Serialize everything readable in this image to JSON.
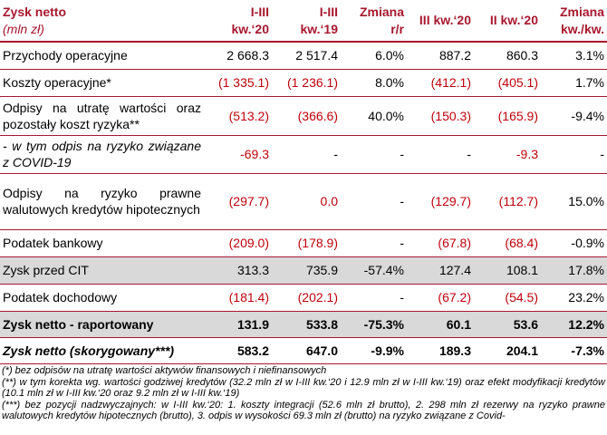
{
  "header": {
    "title": "Zysk netto",
    "unit": "(mln zł)",
    "col1_line1": "I-III",
    "col1_line2": "kw.‘20",
    "col2_line1": "I-III",
    "col2_line2": "kw.‘19",
    "col3_line1": "Zmiana",
    "col3_line2": "r/r",
    "col4": "III kw.‘20",
    "col5": "II kw.‘20",
    "col6_line1": "Zmiana",
    "col6_line2": "kw./kw."
  },
  "rows": [
    {
      "label": "Przychody operacyjne",
      "v1": "2 668.3",
      "v2": "2 517.4",
      "v3": "6.0%",
      "v4": "887.2",
      "v5": "860.3",
      "v6": "3.1%"
    },
    {
      "label": "Koszty operacyjne*",
      "v1": "(1 335.1)",
      "v2": "(1 236.1)",
      "v3": "8.0%",
      "v4": "(412.1)",
      "v5": "(405.1)",
      "v6": "1.7%"
    },
    {
      "label": "Odpisy na utratę wartości oraz pozostały koszt ryzyka**",
      "v1": "(513.2)",
      "v2": "(366.6)",
      "v3": "40.0%",
      "v4": "(150.3)",
      "v5": "(165.9)",
      "v6": "-9.4%"
    },
    {
      "label": "- w tym odpis na ryzyko związane z COVID-19",
      "v1": "-69.3",
      "v2": "-",
      "v3": "-",
      "v4": "-",
      "v5": "-9.3",
      "v6": "-"
    },
    {
      "label": "Odpisy na ryzyko prawne walutowych kredytów hipotecznych",
      "v1": "(297.7)",
      "v2": "0.0",
      "v3": "-",
      "v4": "(129.7)",
      "v5": "(112.7)",
      "v6": "15.0%"
    },
    {
      "label": "Podatek bankowy",
      "v1": "(209.0)",
      "v2": "(178.9)",
      "v3": "-",
      "v4": "(67.8)",
      "v5": "(68.4)",
      "v6": "-0.9%"
    },
    {
      "label": "Zysk przed CIT",
      "v1": "313.3",
      "v2": "735.9",
      "v3": "-57.4%",
      "v4": "127.4",
      "v5": "108.1",
      "v6": "17.8%"
    },
    {
      "label": "Podatek dochodowy",
      "v1": "(181.4)",
      "v2": "(202.1)",
      "v3": "-",
      "v4": "(67.2)",
      "v5": "(54.5)",
      "v6": "23.2%"
    },
    {
      "label": "Zysk netto - raportowany",
      "v1": "131.9",
      "v2": "533.8",
      "v3": "-75.3%",
      "v4": "60.1",
      "v5": "53.6",
      "v6": "12.2%"
    },
    {
      "label": "Zysk netto (skorygowany***)",
      "v1": "583.2",
      "v2": "647.0",
      "v3": "-9.9%",
      "v4": "189.3",
      "v5": "204.1",
      "v6": "-7.3%"
    }
  ],
  "notes": [
    "(*) bez odpisów na utratę wartości aktywów finansowych i niefinansowych",
    "(**) w tym korekta wg. wartości godziwej kredytów (32.2 mln zł w I-III kw.‘20 i 12.9 mln zł w I-III kw.‘19) oraz efekt modyfikacji kredytów (10.1 mln zł w I-III kw.‘20 oraz 9.2 mln zł w I-III kw.‘19)",
    "(***) bez pozycji nadzwyczajnych: w I-III kw.‘20: 1. koszty integracji (52.6 mln zł brutto), 2. 298 mln zł rezerwy na ryzyko prawne walutowych kredytów hipotecznych (brutto), 3. odpis w wysokości 69.3 mln zł (brutto) na ryzyko związane z Covid-"
  ],
  "colors": {
    "accent": "#a8172f",
    "negative": "#c0000b",
    "shade": "#d9d9d9"
  }
}
